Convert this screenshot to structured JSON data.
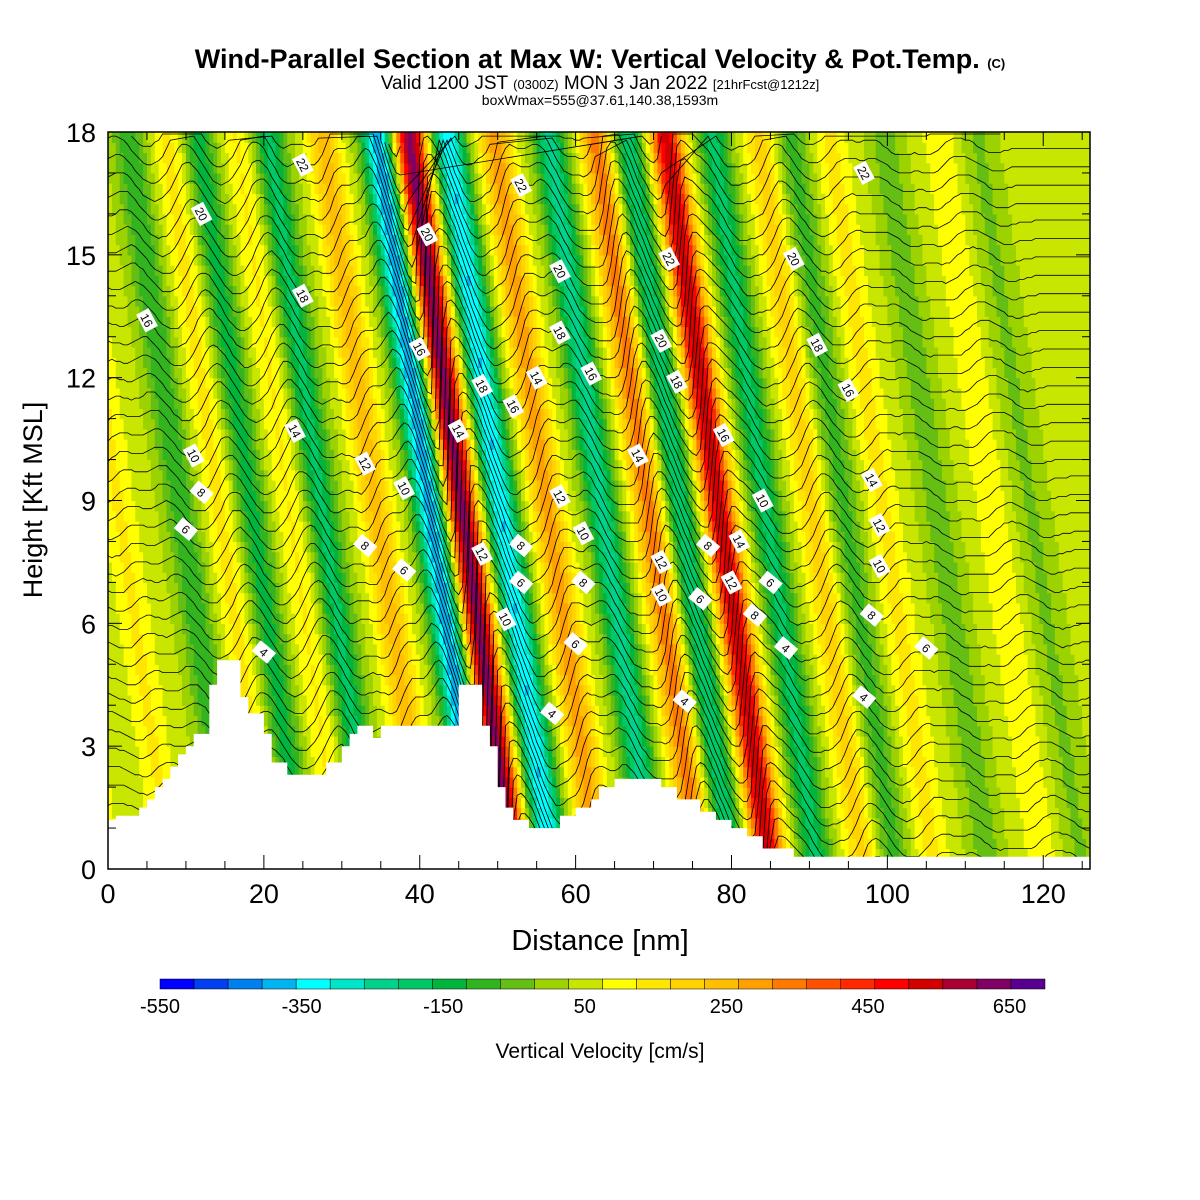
{
  "header": {
    "title_main": "Wind-Parallel Section at Max W: Vertical Velocity & Pot.Temp.",
    "title_mark": "(C)",
    "valid_prefix": "Valid 1200 JST",
    "valid_utc": "(0300Z)",
    "valid_date": "MON 3 Jan 2022",
    "valid_fcst": "[21hrFcst@1212z]",
    "box_info": "boxWmax=555@37.61,140.38,1593m"
  },
  "chart_data": {
    "type": "contour",
    "xlabel": "Distance [nm]",
    "ylabel": "Height [Kft MSL]",
    "xlim": [
      0,
      126
    ],
    "ylim": [
      0,
      18
    ],
    "x_ticks": [
      0,
      20,
      40,
      60,
      80,
      100,
      120
    ],
    "y_ticks": [
      0,
      3,
      6,
      9,
      12,
      15,
      18
    ],
    "colorbar": {
      "label": "Vertical Velocity [cm/s]",
      "bounds": [
        -550,
        700
      ],
      "tick_values": [
        -550,
        -350,
        -150,
        50,
        250,
        450,
        650
      ],
      "colors": [
        "#0000ff",
        "#0040f0",
        "#0080f0",
        "#00b4f0",
        "#00ffff",
        "#00e6c8",
        "#00d28c",
        "#00c864",
        "#00b43c",
        "#32b41e",
        "#64be14",
        "#9bd200",
        "#c8e600",
        "#ffff00",
        "#ffe600",
        "#ffd200",
        "#ffbe00",
        "#ffa000",
        "#ff7800",
        "#ff5000",
        "#ff2800",
        "#ff0000",
        "#d20000",
        "#aa0032",
        "#800064",
        "#5a0090"
      ]
    },
    "terrain": [
      [
        0,
        1.2
      ],
      [
        1,
        1.2
      ],
      [
        1,
        1.3
      ],
      [
        4,
        1.3
      ],
      [
        4,
        1.5
      ],
      [
        5,
        1.5
      ],
      [
        5,
        1.7
      ],
      [
        6,
        1.7
      ],
      [
        6,
        2.0
      ],
      [
        7,
        2.0
      ],
      [
        7,
        2.2
      ],
      [
        8,
        2.2
      ],
      [
        8,
        2.5
      ],
      [
        9,
        2.5
      ],
      [
        9,
        2.8
      ],
      [
        10,
        2.8
      ],
      [
        10,
        3.0
      ],
      [
        11,
        3.0
      ],
      [
        11,
        3.3
      ],
      [
        13,
        3.3
      ],
      [
        13,
        4.5
      ],
      [
        14,
        4.5
      ],
      [
        14,
        5.1
      ],
      [
        17,
        5.1
      ],
      [
        17,
        4.2
      ],
      [
        18,
        4.2
      ],
      [
        18,
        3.8
      ],
      [
        20,
        3.8
      ],
      [
        20,
        3.3
      ],
      [
        21,
        3.3
      ],
      [
        21,
        2.6
      ],
      [
        23,
        2.6
      ],
      [
        23,
        2.3
      ],
      [
        28,
        2.3
      ],
      [
        28,
        2.6
      ],
      [
        30,
        2.6
      ],
      [
        30,
        3.0
      ],
      [
        31,
        3.0
      ],
      [
        31,
        3.3
      ],
      [
        32,
        3.3
      ],
      [
        32,
        3.5
      ],
      [
        34,
        3.5
      ],
      [
        34,
        3.2
      ],
      [
        35,
        3.2
      ],
      [
        35,
        3.5
      ],
      [
        45,
        3.5
      ],
      [
        45,
        4.5
      ],
      [
        48,
        4.5
      ],
      [
        48,
        3.5
      ],
      [
        49,
        3.5
      ],
      [
        49,
        3.0
      ],
      [
        50,
        3.0
      ],
      [
        50,
        2.0
      ],
      [
        51,
        2.0
      ],
      [
        51,
        1.5
      ],
      [
        52,
        1.5
      ],
      [
        52,
        1.2
      ],
      [
        54,
        1.2
      ],
      [
        54,
        1.0
      ],
      [
        58,
        1.0
      ],
      [
        58,
        1.3
      ],
      [
        60,
        1.3
      ],
      [
        60,
        1.5
      ],
      [
        62,
        1.5
      ],
      [
        62,
        1.7
      ],
      [
        63,
        1.7
      ],
      [
        63,
        2.0
      ],
      [
        65,
        2.0
      ],
      [
        65,
        2.2
      ],
      [
        71,
        2.2
      ],
      [
        71,
        2.0
      ],
      [
        73,
        2.0
      ],
      [
        73,
        1.7
      ],
      [
        76,
        1.7
      ],
      [
        76,
        1.4
      ],
      [
        78,
        1.4
      ],
      [
        78,
        1.2
      ],
      [
        80,
        1.2
      ],
      [
        80,
        1.0
      ],
      [
        82,
        1.0
      ],
      [
        82,
        0.8
      ],
      [
        84,
        0.8
      ],
      [
        84,
        0.5
      ],
      [
        88,
        0.5
      ],
      [
        88,
        0.3
      ],
      [
        126,
        0.3
      ]
    ],
    "w_field": {
      "bands": [
        {
          "x": 1,
          "amp": 40
        },
        {
          "x": 8,
          "amp": 90
        },
        {
          "x": 16,
          "amp": -150
        },
        {
          "x": 21,
          "amp": 100
        },
        {
          "x": 25,
          "amp": -180
        },
        {
          "x": 30,
          "amp": 90
        },
        {
          "x": 34,
          "amp": -220
        },
        {
          "x": 41,
          "amp": 200
        },
        {
          "x": 48,
          "amp": -450
        },
        {
          "x": 52,
          "amp": 600
        },
        {
          "x": 57,
          "amp": -400
        },
        {
          "x": 63,
          "amp": 250
        },
        {
          "x": 70,
          "amp": -270
        },
        {
          "x": 76,
          "amp": 300
        },
        {
          "x": 80,
          "amp": -250
        },
        {
          "x": 85,
          "amp": 500
        },
        {
          "x": 91,
          "amp": -220
        },
        {
          "x": 97,
          "amp": 150
        },
        {
          "x": 101,
          "amp": -130
        },
        {
          "x": 106,
          "amp": 100
        },
        {
          "x": 113,
          "amp": -90
        },
        {
          "x": 120,
          "amp": 80
        },
        {
          "x": 125,
          "amp": -70
        }
      ]
    },
    "theta_contour_labels": [
      {
        "text": "22",
        "x": 25,
        "y": 17.2
      },
      {
        "text": "20",
        "x": 12,
        "y": 16.0
      },
      {
        "text": "16",
        "x": 5,
        "y": 13.4
      },
      {
        "text": "18",
        "x": 25,
        "y": 14.0
      },
      {
        "text": "20",
        "x": 41,
        "y": 15.5
      },
      {
        "text": "16",
        "x": 40,
        "y": 12.7
      },
      {
        "text": "14",
        "x": 24,
        "y": 10.7
      },
      {
        "text": "12",
        "x": 33,
        "y": 9.9
      },
      {
        "text": "10",
        "x": 11,
        "y": 10.1
      },
      {
        "text": "8",
        "x": 12,
        "y": 9.2
      },
      {
        "text": "6",
        "x": 10,
        "y": 8.3
      },
      {
        "text": "10",
        "x": 38,
        "y": 9.3
      },
      {
        "text": "8",
        "x": 33,
        "y": 7.9
      },
      {
        "text": "6",
        "x": 38,
        "y": 7.3
      },
      {
        "text": "4",
        "x": 20,
        "y": 5.3
      },
      {
        "text": "14",
        "x": 45,
        "y": 10.7
      },
      {
        "text": "18",
        "x": 48,
        "y": 11.8
      },
      {
        "text": "16",
        "x": 52,
        "y": 11.3
      },
      {
        "text": "14",
        "x": 55,
        "y": 12.0
      },
      {
        "text": "12",
        "x": 48,
        "y": 7.7
      },
      {
        "text": "10",
        "x": 51,
        "y": 6.1
      },
      {
        "text": "8",
        "x": 53,
        "y": 7.9
      },
      {
        "text": "6",
        "x": 53,
        "y": 7.0
      },
      {
        "text": "22",
        "x": 53,
        "y": 16.7
      },
      {
        "text": "20",
        "x": 58,
        "y": 14.6
      },
      {
        "text": "18",
        "x": 58,
        "y": 13.1
      },
      {
        "text": "12",
        "x": 58,
        "y": 9.1
      },
      {
        "text": "10",
        "x": 61,
        "y": 8.2
      },
      {
        "text": "8",
        "x": 61,
        "y": 7.0
      },
      {
        "text": "6",
        "x": 60,
        "y": 5.5
      },
      {
        "text": "4",
        "x": 57,
        "y": 3.8
      },
      {
        "text": "16",
        "x": 62,
        "y": 12.1
      },
      {
        "text": "22",
        "x": 72,
        "y": 14.9
      },
      {
        "text": "20",
        "x": 71,
        "y": 12.9
      },
      {
        "text": "18",
        "x": 73,
        "y": 11.9
      },
      {
        "text": "14",
        "x": 68,
        "y": 10.1
      },
      {
        "text": "12",
        "x": 71,
        "y": 7.5
      },
      {
        "text": "10",
        "x": 71,
        "y": 6.7
      },
      {
        "text": "6",
        "x": 76,
        "y": 6.6
      },
      {
        "text": "8",
        "x": 77,
        "y": 7.9
      },
      {
        "text": "4",
        "x": 74,
        "y": 4.1
      },
      {
        "text": "16",
        "x": 79,
        "y": 10.6
      },
      {
        "text": "14",
        "x": 81,
        "y": 8.0
      },
      {
        "text": "12",
        "x": 80,
        "y": 7.0
      },
      {
        "text": "10",
        "x": 84,
        "y": 9.0
      },
      {
        "text": "8",
        "x": 83,
        "y": 6.2
      },
      {
        "text": "6",
        "x": 85,
        "y": 7.0
      },
      {
        "text": "4",
        "x": 87,
        "y": 5.4
      },
      {
        "text": "20",
        "x": 88,
        "y": 14.9
      },
      {
        "text": "18",
        "x": 91,
        "y": 12.8
      },
      {
        "text": "16",
        "x": 95,
        "y": 11.7
      },
      {
        "text": "22",
        "x": 97,
        "y": 17.0
      },
      {
        "text": "14",
        "x": 98,
        "y": 9.5
      },
      {
        "text": "12",
        "x": 99,
        "y": 8.4
      },
      {
        "text": "10",
        "x": 99,
        "y": 7.4
      },
      {
        "text": "8",
        "x": 98,
        "y": 6.2
      },
      {
        "text": "6",
        "x": 105,
        "y": 5.4
      },
      {
        "text": "4",
        "x": 97,
        "y": 4.2
      }
    ]
  }
}
